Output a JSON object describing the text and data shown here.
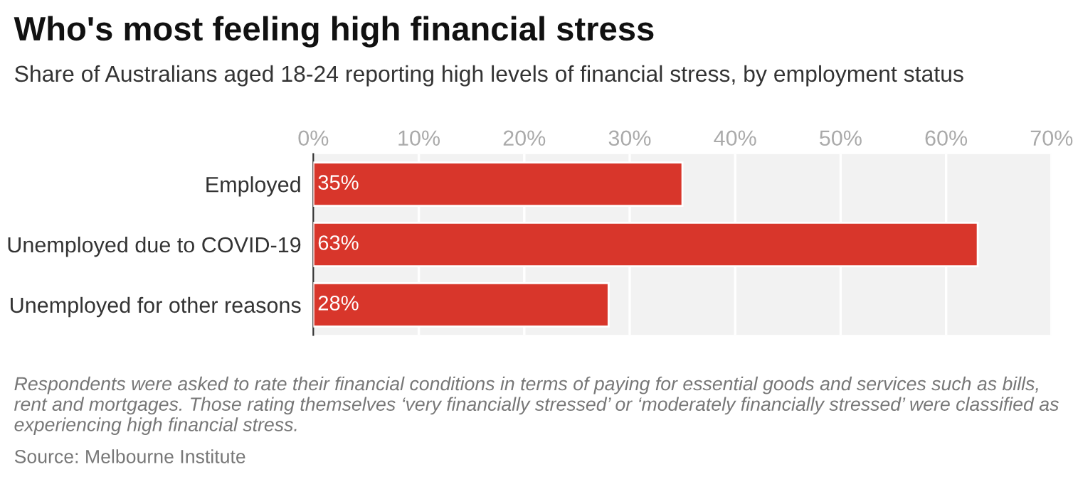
{
  "chart_data": {
    "type": "bar",
    "orientation": "horizontal",
    "title": "Who's most feeling high financial stress",
    "subtitle": "Share of Australians aged 18-24 reporting high levels of financial stress, by employment status",
    "categories": [
      "Employed",
      "Unemployed due to COVID-19",
      "Unemployed for other reasons"
    ],
    "values": [
      35,
      63,
      28
    ],
    "color": "#d8362b",
    "value_labels": [
      "35%",
      "63%",
      "28%"
    ],
    "xlim": [
      0,
      70
    ],
    "xticks": [
      {
        "value": 0,
        "label": "0%"
      },
      {
        "value": 10,
        "label": "10%"
      },
      {
        "value": 20,
        "label": "20%"
      },
      {
        "value": 30,
        "label": "30%"
      },
      {
        "value": 40,
        "label": "40%"
      },
      {
        "value": 50,
        "label": "50%"
      },
      {
        "value": 60,
        "label": "60%"
      },
      {
        "value": 70,
        "label": "70%"
      }
    ],
    "grid": "x",
    "annotations": [
      "Respondents were asked to rate their financial conditions in terms of paying for essential goods and services such as bills, rent and mortgages. Those rating themselves ‘very financially stressed’ or ‘moderately financially stressed’ were classified as experiencing high financial stress.",
      "Source: Melbourne Institute"
    ]
  }
}
